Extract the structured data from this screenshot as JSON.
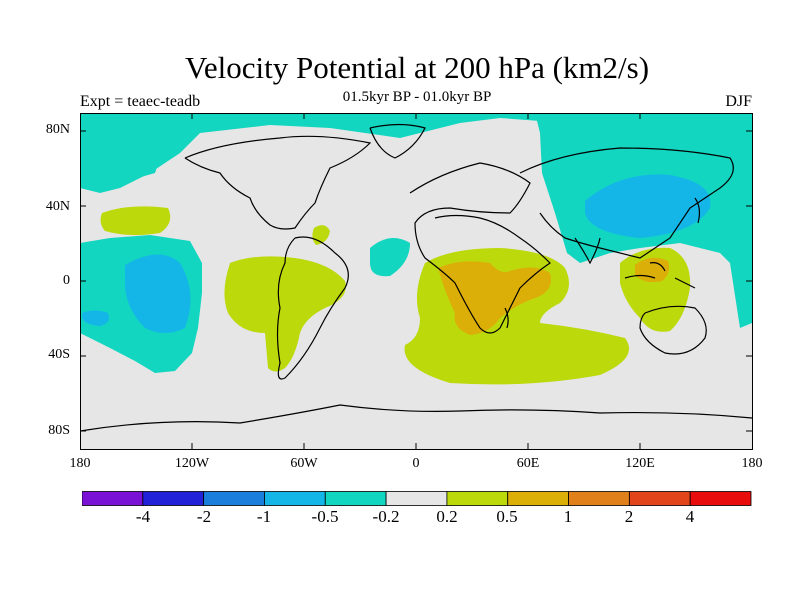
{
  "header": {
    "title": "Velocity Potential at 200 hPa (km2/s)",
    "subtitle": "01.5kyr BP - 01.0kyr BP",
    "left_label": "Expt = teaec-teadb",
    "right_label": "DJF"
  },
  "axes": {
    "lat_ticks": [
      "80N",
      "40N",
      "0",
      "40S",
      "80S"
    ],
    "lon_ticks": [
      "180",
      "120W",
      "60W",
      "0",
      "60E",
      "120E",
      "180"
    ]
  },
  "colorbar": {
    "labels": [
      "-4",
      "-2",
      "-1",
      "-0.5",
      "-0.2",
      "0.2",
      "0.5",
      "1",
      "2",
      "4"
    ],
    "colors": [
      "#7a12d6",
      "#2222d8",
      "#1a7fdc",
      "#14b6e8",
      "#12d6c0",
      "#e6e6e6",
      "#bcd90c",
      "#dcae08",
      "#e0801a",
      "#e2451a",
      "#e80c0c"
    ]
  },
  "colors": {
    "neutral": "#e6e6e6",
    "neg_light": "#12d6c0",
    "neg_mid": "#14b6e8",
    "pos_light": "#bcd90c",
    "pos_mid": "#dcae08"
  }
}
